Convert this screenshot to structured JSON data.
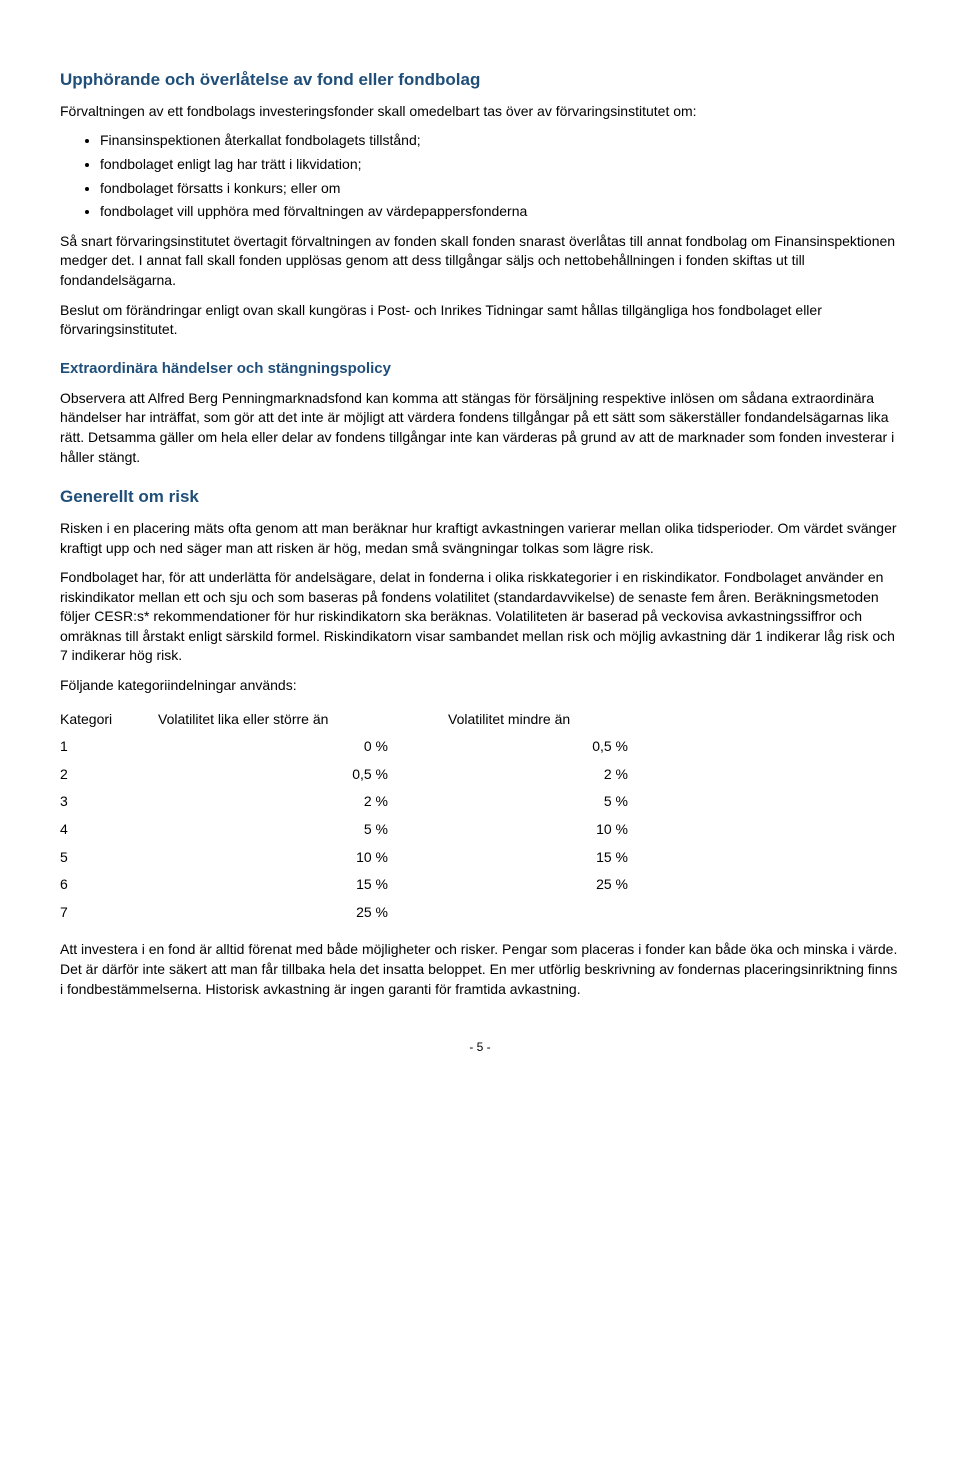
{
  "h1": "Upphörande och överlåtelse av fond eller fondbolag",
  "p1": "Förvaltningen av ett fondbolags investeringsfonder skall omedelbart tas över av förvaringsinstitutet om:",
  "bullets": [
    "Finansinspektionen återkallat fondbolagets tillstånd;",
    "fondbolaget enligt lag har trätt i likvidation;",
    "fondbolaget försatts i konkurs; eller om",
    "fondbolaget vill upphöra med förvaltningen av värdepappersfonderna"
  ],
  "p2": "Så snart förvaringsinstitutet övertagit förvaltningen av fonden skall fonden snarast överlåtas till annat fondbolag om Finansinspektionen medger det. I annat fall skall fonden upplösas genom att dess tillgångar säljs och nettobehållningen i fonden skiftas ut till fondandelsägarna.",
  "p3": "Beslut om förändringar enligt ovan skall kungöras i Post- och Inrikes Tidningar samt hållas tillgängliga hos fondbolaget eller förvaringsinstitutet.",
  "h2": "Extraordinära händelser och stängningspolicy",
  "p4": "Observera att Alfred Berg Penningmarknadsfond kan komma att stängas för försäljning respektive inlösen om sådana extraordinära händelser har inträffat, som gör att det inte är möjligt att värdera fondens tillgångar på ett sätt som säkerställer fondandelsägarnas lika rätt. Detsamma gäller om hela eller delar av fondens tillgångar inte kan värderas på grund av att de marknader som fonden investerar i håller stängt.",
  "h3": "Generellt om risk",
  "p5": "Risken i en placering mäts ofta genom att man beräknar hur kraftigt avkastningen varierar mellan olika tidsperioder. Om värdet svänger kraftigt upp och ned säger man att risken är hög, medan små svängningar tolkas som lägre risk.",
  "p6": "Fondbolaget har, för att underlätta för andelsägare, delat in fonderna i olika riskkategorier i en riskindikator. Fondbolaget använder en riskindikator mellan ett och sju och som baseras på fondens volatilitet (standardavvikelse) de senaste fem åren. Beräkningsmetoden följer CESR:s* rekommendationer för hur riskindikatorn ska beräknas. Volatiliteten är baserad på veckovisa avkastningssiffror och omräknas till årstakt enligt särskild formel. Riskindikatorn visar sambandet mellan risk och möjlig avkastning där 1 indikerar låg risk och 7 indikerar hög risk.",
  "p7": "Följande kategoriindelningar används:",
  "table": {
    "headers": [
      "Kategori",
      "Volatilitet lika eller större än",
      "Volatilitet mindre än"
    ],
    "rows": [
      [
        "1",
        "0 %",
        "0,5 %"
      ],
      [
        "2",
        "0,5 %",
        "2 %"
      ],
      [
        "3",
        "2 %",
        "5 %"
      ],
      [
        "4",
        "5 %",
        "10 %"
      ],
      [
        "5",
        "10 %",
        "15 %"
      ],
      [
        "6",
        "15 %",
        "25 %"
      ],
      [
        "7",
        "25 %",
        ""
      ]
    ]
  },
  "p8": "Att investera i en fond är alltid förenat med både möjligheter och risker. Pengar som placeras i fonder kan både öka och minska i värde. Det är därför inte säkert att man får tillbaka hela det insatta beloppet. En mer utförlig beskrivning av fondernas placeringsinriktning finns i fondbestämmelserna. Historisk avkastning är ingen garanti för framtida avkastning.",
  "pagenum": "- 5 -"
}
